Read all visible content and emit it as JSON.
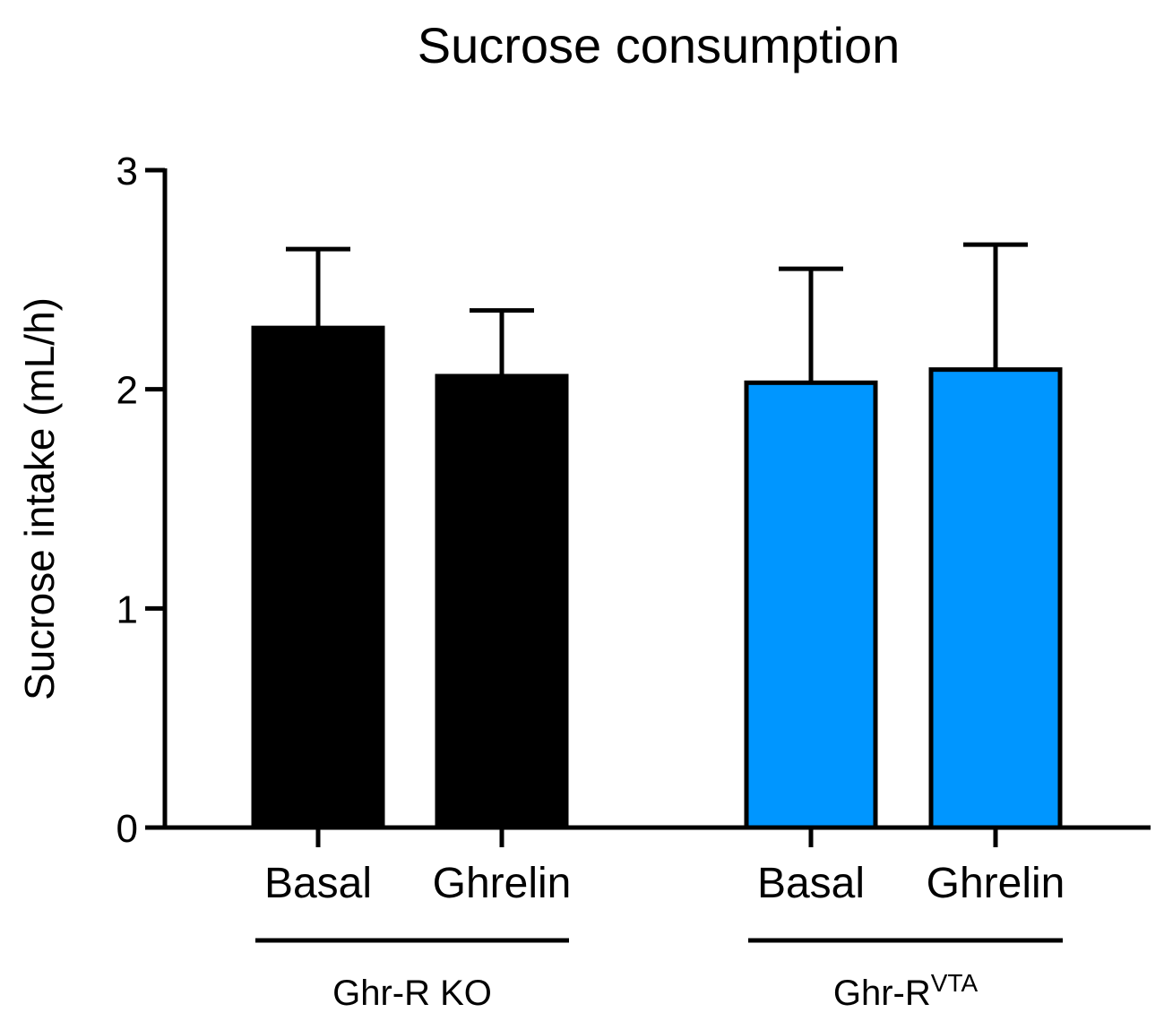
{
  "chart_data": {
    "type": "bar",
    "title": "Sucrose consumption",
    "ylabel": "Sucrose intake (mL/h)",
    "xlabel": "",
    "ylim": [
      0,
      3
    ],
    "yticks": [
      "0",
      "1",
      "2",
      "3"
    ],
    "categories": [
      "Basal",
      "Ghrelin",
      "Basal",
      "Ghrelin"
    ],
    "values": [
      2.28,
      2.06,
      2.03,
      2.09
    ],
    "errors": [
      0.36,
      0.3,
      0.52,
      0.57
    ],
    "bar_colors": [
      "#000000",
      "#000000",
      "#0096FF",
      "#0096FF"
    ],
    "groups": [
      {
        "label": "Ghr-R KO",
        "superscript": "",
        "bars": [
          0,
          1
        ]
      },
      {
        "label": "Ghr-R",
        "superscript": "VTA",
        "bars": [
          2,
          3
        ]
      }
    ]
  }
}
